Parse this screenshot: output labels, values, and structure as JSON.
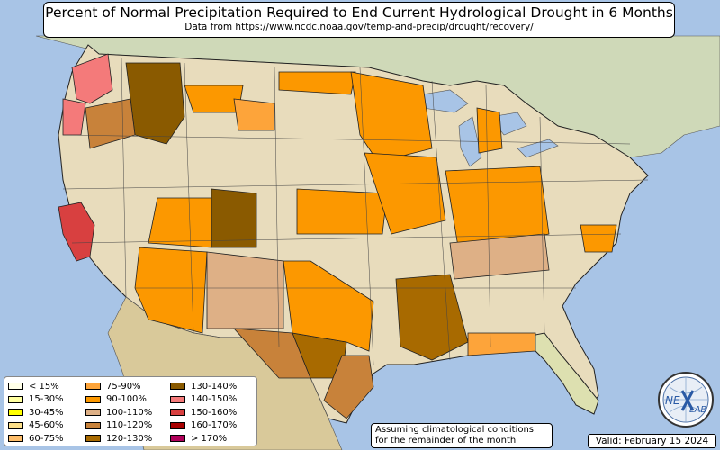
{
  "title": "Percent of Normal Precipitation Required to End Current Hydrological Drought in 6 Months",
  "subtitle": "Data from https://www.ncdc.noaa.gov/temp-and-precip/drought/recovery/",
  "assumption_line1": "Assuming climatological conditions",
  "assumption_line2": "for the remainder of the month",
  "valid": "Valid: February 15 2024",
  "logo": {
    "text_ne": "NE",
    "text_lab": "LAB"
  },
  "legend": [
    {
      "label": "< 15%",
      "color": "#ffffe8"
    },
    {
      "label": "15-30%",
      "color": "#ffffa0"
    },
    {
      "label": "30-45%",
      "color": "#ffff00"
    },
    {
      "label": "45-60%",
      "color": "#fde08a"
    },
    {
      "label": "60-75%",
      "color": "#fdbd6a"
    },
    {
      "label": "75-90%",
      "color": "#fda43a"
    },
    {
      "label": "90-100%",
      "color": "#fc9800"
    },
    {
      "label": "100-110%",
      "color": "#deb086"
    },
    {
      "label": "110-120%",
      "color": "#c8823a"
    },
    {
      "label": "120-130%",
      "color": "#a86a00"
    },
    {
      "label": "130-140%",
      "color": "#8a5a00"
    },
    {
      "label": "140-150%",
      "color": "#f47a7a"
    },
    {
      "label": "150-160%",
      "color": "#d84040"
    },
    {
      "label": "160-170%",
      "color": "#a80000"
    },
    {
      "label": "> 170%",
      "color": "#b0005a"
    }
  ]
}
